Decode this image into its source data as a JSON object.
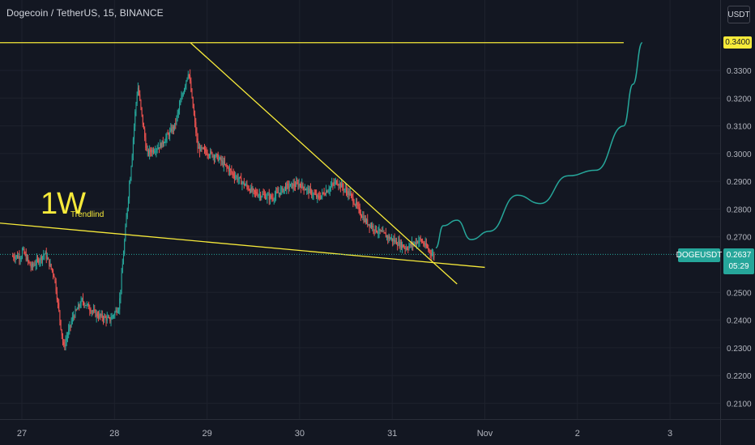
{
  "header": {
    "title": "Dogecoin / TetherUS, 15, BINANCE",
    "currency_button": "USDT"
  },
  "price_scale": {
    "ticks": [
      "0.3300",
      "0.3200",
      "0.3100",
      "0.3000",
      "0.2900",
      "0.2800",
      "0.2700",
      "0.2500",
      "0.2400",
      "0.2300",
      "0.2200",
      "0.2100"
    ],
    "resistance_label": "0.3400",
    "symbol_label": "DOGEUSDT",
    "last_price": "0.2637",
    "countdown": "05:29"
  },
  "time_scale": {
    "ticks": [
      "27",
      "28",
      "29",
      "30",
      "31",
      "Nov",
      "2",
      "3"
    ]
  },
  "annotation": {
    "main": "1W",
    "sub": "Trendlind"
  },
  "colors": {
    "background": "#131722",
    "up": "#26a69a",
    "down": "#ef5350",
    "trendline": "#f7ea3a",
    "projection": "#26a69a",
    "grid": "#1e222d"
  },
  "chart_data": {
    "type": "candlestick",
    "symbol": "DOGEUSDT",
    "interval": "15",
    "ylim": [
      0.205,
      0.345
    ],
    "x_ticks": [
      "27",
      "28",
      "29",
      "30",
      "31",
      "Nov",
      "2",
      "3"
    ],
    "close_path": [
      {
        "x": 27.0,
        "y": 0.2655
      },
      {
        "x": 27.1,
        "y": 0.259
      },
      {
        "x": 27.25,
        "y": 0.264
      },
      {
        "x": 27.35,
        "y": 0.256
      },
      {
        "x": 27.45,
        "y": 0.23
      },
      {
        "x": 27.55,
        "y": 0.241
      },
      {
        "x": 27.65,
        "y": 0.247
      },
      {
        "x": 27.8,
        "y": 0.242
      },
      {
        "x": 27.95,
        "y": 0.24
      },
      {
        "x": 28.05,
        "y": 0.245
      },
      {
        "x": 28.25,
        "y": 0.325
      },
      {
        "x": 28.35,
        "y": 0.3
      },
      {
        "x": 28.5,
        "y": 0.303
      },
      {
        "x": 28.65,
        "y": 0.31
      },
      {
        "x": 28.8,
        "y": 0.33
      },
      {
        "x": 28.9,
        "y": 0.302
      },
      {
        "x": 29.1,
        "y": 0.299
      },
      {
        "x": 29.3,
        "y": 0.292
      },
      {
        "x": 29.5,
        "y": 0.286
      },
      {
        "x": 29.7,
        "y": 0.284
      },
      {
        "x": 29.85,
        "y": 0.288
      },
      {
        "x": 30.0,
        "y": 0.289
      },
      {
        "x": 30.2,
        "y": 0.284
      },
      {
        "x": 30.4,
        "y": 0.29
      },
      {
        "x": 30.55,
        "y": 0.285
      },
      {
        "x": 30.7,
        "y": 0.276
      },
      {
        "x": 30.85,
        "y": 0.272
      },
      {
        "x": 31.0,
        "y": 0.269
      },
      {
        "x": 31.15,
        "y": 0.266
      },
      {
        "x": 31.3,
        "y": 0.269
      },
      {
        "x": 31.45,
        "y": 0.263
      }
    ],
    "lines": [
      {
        "name": "resistance",
        "points": [
          [
            26.75,
            0.34
          ],
          [
            33.5,
            0.34
          ]
        ]
      },
      {
        "name": "descending",
        "points": [
          [
            28.82,
            0.34
          ],
          [
            31.7,
            0.253
          ]
        ]
      },
      {
        "name": "1W trendline",
        "points": [
          [
            26.75,
            0.275
          ],
          [
            32.0,
            0.259
          ]
        ]
      }
    ],
    "projection": [
      [
        31.47,
        0.266
      ],
      [
        31.55,
        0.274
      ],
      [
        31.7,
        0.276
      ],
      [
        31.85,
        0.269
      ],
      [
        32.05,
        0.272
      ],
      [
        32.35,
        0.285
      ],
      [
        32.6,
        0.282
      ],
      [
        32.9,
        0.292
      ],
      [
        33.2,
        0.294
      ],
      [
        33.5,
        0.31
      ],
      [
        33.6,
        0.325
      ],
      [
        33.7,
        0.34
      ]
    ],
    "last_price": 0.2637
  }
}
